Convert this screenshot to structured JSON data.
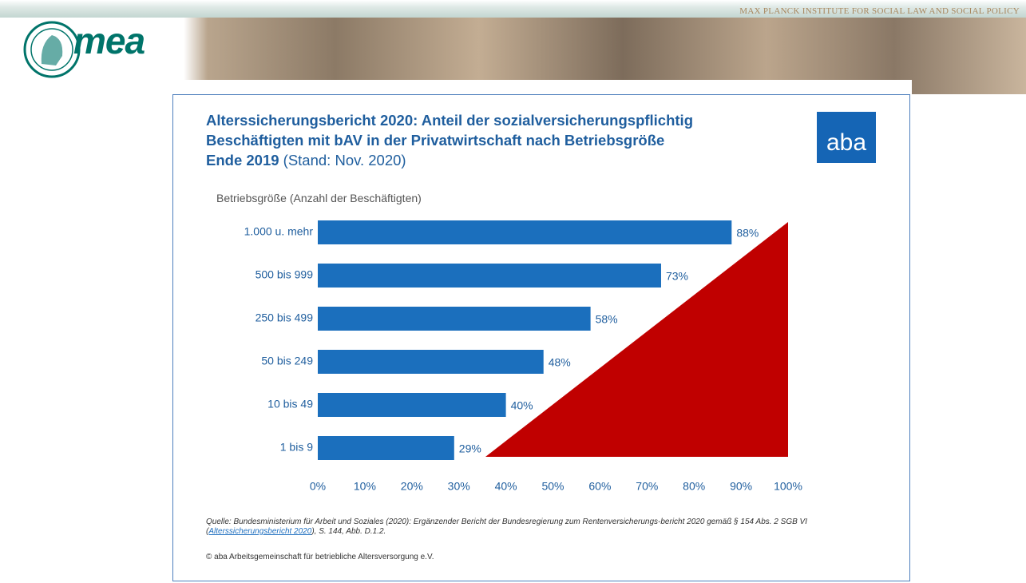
{
  "header": {
    "institute": "MAX PLANCK INSTITUTE FOR SOCIAL LAW AND SOCIAL POLICY",
    "logo": "mea"
  },
  "logo": "aba",
  "chart_data": {
    "type": "barh",
    "title_lines": [
      "Alterssicherungsbericht 2020: Anteil der sozialversicherungspflichtig",
      "Beschäftigten mit bAV in der Privatwirtschaft nach Betriebsgröße",
      "Ende 2019"
    ],
    "subtitle": "(Stand: Nov. 2020)",
    "ylabel": "Betriebsgröße (Anzahl der Beschäftigten)",
    "categories": [
      "1.000 u. mehr",
      "500 bis 999",
      "250 bis 499",
      "50 bis 249",
      "10 bis 49",
      "1 bis 9"
    ],
    "values": [
      88,
      73,
      58,
      48,
      40,
      29
    ],
    "value_labels": [
      "88%",
      "73%",
      "58%",
      "48%",
      "40%",
      "29%"
    ],
    "color": "#1b6fbd",
    "xlim": [
      0,
      100
    ],
    "xticks": [
      {
        "value": 0,
        "label": "0%"
      },
      {
        "value": 10,
        "label": "10%"
      },
      {
        "value": 20,
        "label": "20%"
      },
      {
        "value": 30,
        "label": "30%"
      },
      {
        "value": 40,
        "label": "40%"
      },
      {
        "value": 50,
        "label": "50%"
      },
      {
        "value": 60,
        "label": "60%"
      },
      {
        "value": 70,
        "label": "70%"
      },
      {
        "value": 80,
        "label": "80%"
      },
      {
        "value": 90,
        "label": "90%"
      },
      {
        "value": 100,
        "label": "100%"
      }
    ]
  },
  "source": {
    "before": "Quelle: Bundesministerium für Arbeit und Soziales (2020): Ergänzender Bericht der Bundesregierung zum Rentenversicherungs-bericht 2020 gemäß § 154 Abs. 2 SGB VI (",
    "link": "Alterssicherungsbericht 2020",
    "after": "), S. 144, Abb. D.1.2."
  },
  "copyright": "© aba Arbeitsgemeinschaft für betriebliche Altersversorgung e.V."
}
